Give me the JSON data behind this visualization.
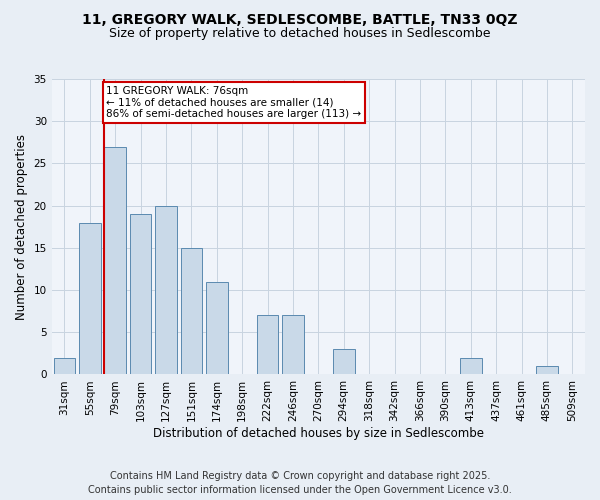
{
  "title1": "11, GREGORY WALK, SEDLESCOMBE, BATTLE, TN33 0QZ",
  "title2": "Size of property relative to detached houses in Sedlescombe",
  "xlabel": "Distribution of detached houses by size in Sedlescombe",
  "ylabel": "Number of detached properties",
  "categories": [
    "31sqm",
    "55sqm",
    "79sqm",
    "103sqm",
    "127sqm",
    "151sqm",
    "174sqm",
    "198sqm",
    "222sqm",
    "246sqm",
    "270sqm",
    "294sqm",
    "318sqm",
    "342sqm",
    "366sqm",
    "390sqm",
    "413sqm",
    "437sqm",
    "461sqm",
    "485sqm",
    "509sqm"
  ],
  "values": [
    2,
    18,
    27,
    19,
    20,
    15,
    11,
    0,
    7,
    7,
    0,
    3,
    0,
    0,
    0,
    0,
    2,
    0,
    0,
    1,
    0
  ],
  "bar_color": "#c9d9e8",
  "bar_edge_color": "#5a8ab0",
  "red_line_index": 2,
  "annotation_text": "11 GREGORY WALK: 76sqm\n← 11% of detached houses are smaller (14)\n86% of semi-detached houses are larger (113) →",
  "annotation_box_color": "#ffffff",
  "annotation_box_edge": "#cc0000",
  "annotation_text_color": "#000000",
  "red_line_color": "#cc0000",
  "ylim": [
    0,
    35
  ],
  "yticks": [
    0,
    5,
    10,
    15,
    20,
    25,
    30,
    35
  ],
  "footer1": "Contains HM Land Registry data © Crown copyright and database right 2025.",
  "footer2": "Contains public sector information licensed under the Open Government Licence v3.0.",
  "bg_color": "#e8eef5",
  "plot_bg_color": "#f0f4fa",
  "grid_color": "#c8d4e0",
  "title1_fontsize": 10,
  "title2_fontsize": 9,
  "axis_label_fontsize": 8.5,
  "tick_fontsize": 7.5,
  "footer_fontsize": 7,
  "annotation_fontsize": 7.5
}
